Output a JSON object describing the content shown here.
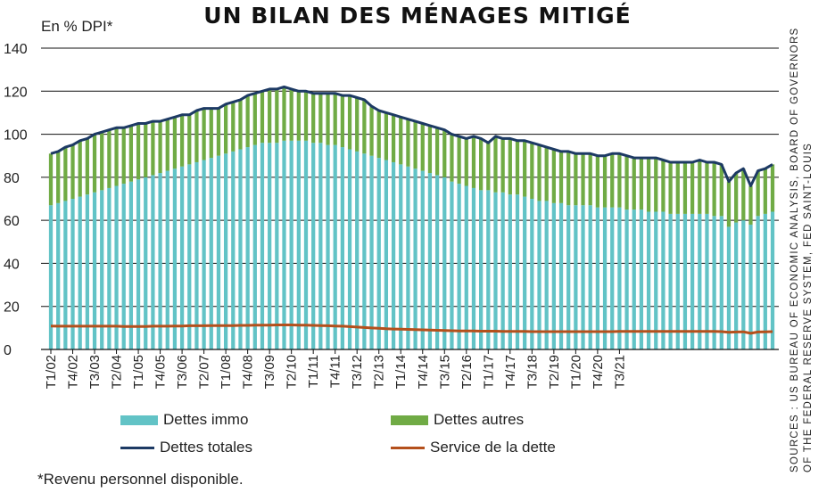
{
  "title": "UN BILAN DES MÉNAGES MITIGÉ",
  "footnote": "*Revenu personnel disponible.",
  "sources": {
    "line1": "SOURCES : US BUREAU OF ECONOMIC ANALYSIS, BOARD OF GOVERNORS",
    "line2": "OF THE FEDERAL RESERVE SYSTEM, FED SAINT-LOUIS"
  },
  "legend": {
    "immo": "Dettes immo",
    "autres": "Dettes autres",
    "totales": "Dettes totales",
    "service": "Service de la dette"
  },
  "colors": {
    "immo": "#62c3c6",
    "autres": "#70ab45",
    "totales": "#1d3a64",
    "service": "#b4501c"
  },
  "chart_data": {
    "type": "bar",
    "ylabel": "En % DPI*",
    "ylim": [
      0,
      140
    ],
    "yticks": [
      0,
      20,
      40,
      60,
      80,
      100,
      120,
      140
    ],
    "grid": "horizontal",
    "legend_position": "bottom",
    "start_quarter": "T1/02",
    "xtick_labels": [
      "T1/02",
      "T4/02",
      "T3/03",
      "T2/04",
      "T1/05",
      "T4/05",
      "T3/06",
      "T2/07",
      "T1/08",
      "T4/08",
      "T3/09",
      "T2/10",
      "T1/11",
      "T4/11",
      "T3/12",
      "T2/13",
      "T1/14",
      "T4/14",
      "T3/15",
      "T2/16",
      "T1/17",
      "T4/17",
      "T3/18",
      "T2/19",
      "T1/20",
      "T4/20",
      "T3/21"
    ],
    "series": [
      {
        "name": "Dettes immo",
        "kind": "stacked-bar",
        "values": [
          67,
          68,
          69,
          70,
          71,
          72,
          73,
          74,
          75,
          76,
          77,
          78,
          79,
          80,
          81,
          82,
          83,
          84,
          85,
          86,
          87,
          88,
          89,
          90,
          91,
          92,
          93,
          94,
          95,
          96,
          96,
          96,
          97,
          97,
          97,
          97,
          96,
          96,
          95,
          95,
          94,
          93,
          92,
          91,
          90,
          89,
          88,
          87,
          86,
          85,
          84,
          83,
          82,
          81,
          80,
          78,
          77,
          76,
          75,
          74,
          74,
          73,
          73,
          72,
          72,
          71,
          70,
          69,
          69,
          68,
          68,
          67,
          67,
          67,
          67,
          66,
          66,
          66,
          66,
          65,
          65,
          65,
          64,
          64,
          64,
          63,
          63,
          63,
          63,
          63,
          63,
          62,
          62,
          57,
          59,
          60,
          58,
          62,
          63,
          64
        ]
      },
      {
        "name": "Dettes autres",
        "kind": "stacked-bar",
        "values": [
          24,
          24,
          25,
          25,
          26,
          26,
          27,
          27,
          27,
          27,
          26,
          26,
          26,
          25,
          25,
          24,
          24,
          24,
          24,
          23,
          24,
          24,
          23,
          22,
          23,
          23,
          23,
          24,
          24,
          24,
          25,
          25,
          25,
          24,
          23,
          23,
          23,
          23,
          24,
          24,
          24,
          25,
          25,
          25,
          23,
          22,
          22,
          22,
          22,
          22,
          22,
          22,
          22,
          22,
          22,
          22,
          22,
          22,
          24,
          24,
          22,
          26,
          25,
          26,
          25,
          26,
          26,
          26,
          25,
          25,
          24,
          25,
          24,
          24,
          24,
          24,
          24,
          25,
          25,
          25,
          24,
          24,
          25,
          25,
          24,
          24,
          24,
          24,
          24,
          25,
          24,
          25,
          24,
          21,
          23,
          24,
          18,
          21,
          21,
          22
        ]
      },
      {
        "name": "Dettes totales",
        "kind": "line",
        "values": [
          91,
          92,
          94,
          95,
          97,
          98,
          100,
          101,
          102,
          103,
          103,
          104,
          105,
          105,
          106,
          106,
          107,
          108,
          109,
          109,
          111,
          112,
          112,
          112,
          114,
          115,
          116,
          118,
          119,
          120,
          121,
          121,
          122,
          121,
          120,
          120,
          119,
          119,
          119,
          119,
          118,
          118,
          117,
          116,
          113,
          111,
          110,
          109,
          108,
          107,
          106,
          105,
          104,
          103,
          102,
          100,
          99,
          98,
          99,
          98,
          96,
          99,
          98,
          98,
          97,
          97,
          96,
          95,
          94,
          93,
          92,
          92,
          91,
          91,
          91,
          90,
          90,
          91,
          91,
          90,
          89,
          89,
          89,
          89,
          88,
          87,
          87,
          87,
          87,
          88,
          87,
          87,
          86,
          78,
          82,
          84,
          76,
          83,
          84,
          86
        ]
      },
      {
        "name": "Service de la dette",
        "kind": "line",
        "values": [
          10.9,
          10.8,
          10.8,
          10.8,
          10.8,
          10.8,
          10.8,
          10.8,
          10.8,
          10.8,
          10.7,
          10.7,
          10.7,
          10.7,
          10.8,
          10.8,
          10.8,
          10.9,
          10.9,
          11.0,
          11.0,
          11.0,
          11.1,
          11.1,
          11.1,
          11.1,
          11.2,
          11.2,
          11.3,
          11.3,
          11.3,
          11.4,
          11.4,
          11.4,
          11.3,
          11.3,
          11.2,
          11.1,
          11.0,
          10.9,
          10.8,
          10.6,
          10.4,
          10.2,
          10.0,
          9.8,
          9.6,
          9.5,
          9.4,
          9.3,
          9.2,
          9.1,
          9.0,
          8.9,
          8.8,
          8.7,
          8.6,
          8.6,
          8.6,
          8.5,
          8.5,
          8.5,
          8.4,
          8.4,
          8.4,
          8.4,
          8.3,
          8.3,
          8.3,
          8.3,
          8.3,
          8.3,
          8.3,
          8.3,
          8.3,
          8.3,
          8.3,
          8.3,
          8.4,
          8.4,
          8.4,
          8.4,
          8.4,
          8.4,
          8.4,
          8.4,
          8.4,
          8.4,
          8.4,
          8.4,
          8.4,
          8.4,
          8.3,
          8.0,
          8.1,
          8.2,
          7.5,
          8.1,
          8.2,
          8.3
        ]
      }
    ]
  }
}
